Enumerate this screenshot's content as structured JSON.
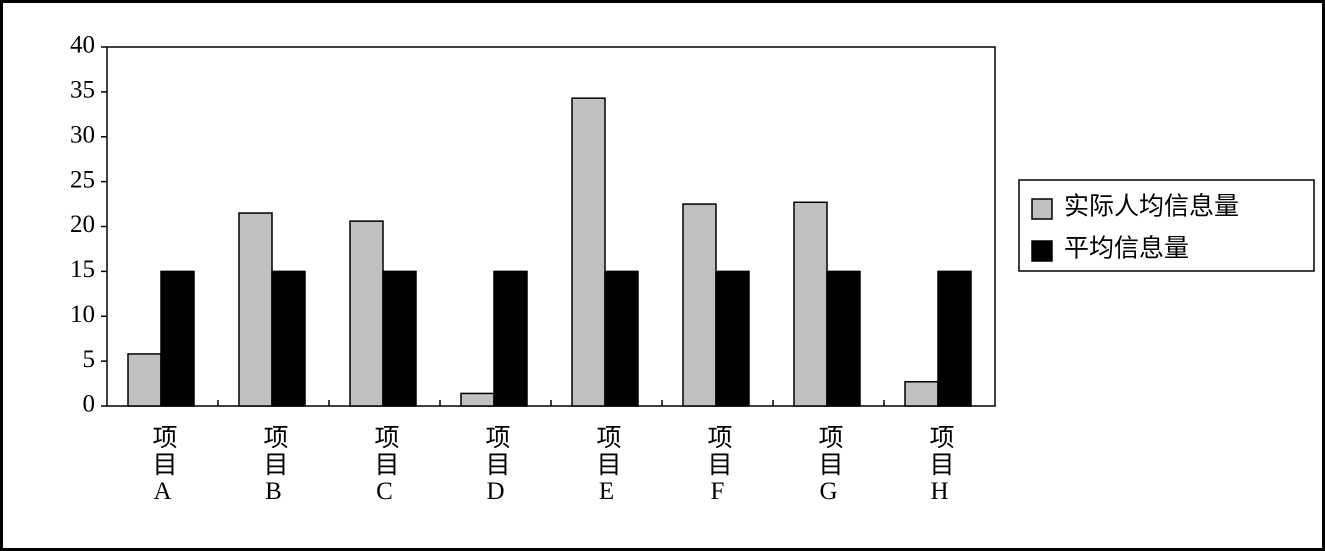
{
  "chart_data": {
    "type": "bar",
    "categories": [
      "项目A",
      "项目B",
      "项目C",
      "项目D",
      "项目E",
      "项目F",
      "项目G",
      "项目H"
    ],
    "series": [
      {
        "name": "实际人均信息量",
        "color": "#c0c0c0",
        "values": [
          5.8,
          21.5,
          20.6,
          1.4,
          34.3,
          22.5,
          22.7,
          2.7
        ]
      },
      {
        "name": "平均信息量",
        "color": "#000000",
        "values": [
          15,
          15,
          15,
          15,
          15,
          15,
          15,
          15
        ]
      }
    ],
    "ylim": [
      0,
      40
    ],
    "yticks": [
      0,
      5,
      10,
      15,
      20,
      25,
      30,
      35,
      40
    ],
    "grid": false,
    "legend": "right"
  }
}
